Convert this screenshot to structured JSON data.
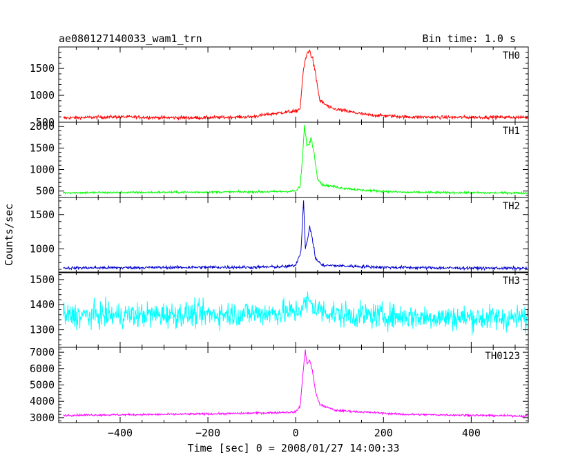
{
  "header": {
    "left_title": "ae080127140033_wam1_trn",
    "right_title": "Bin time: 1.0 s"
  },
  "chart_data": {
    "type": "line",
    "title": "ae080127140033_wam1_trn",
    "subtitle": "Bin time: 1.0 s",
    "xlabel": "Time [sec] 0 = 2008/01/27 14:00:33",
    "ylabel": "Counts/sec",
    "xlim": [
      -540,
      530
    ],
    "x_ticks": [
      -400,
      -200,
      0,
      200,
      400
    ],
    "x_tick_labels": [
      "−400",
      "−200",
      "0",
      "200",
      "400"
    ],
    "grid": false,
    "bin_time_s": 1.0,
    "panels": [
      {
        "name": "TH0",
        "color": "#ff0000",
        "ylim": [
          500,
          1900
        ],
        "y_ticks": [
          500,
          1000,
          1500
        ],
        "series_points": [
          [
            -530,
            580
          ],
          [
            -400,
            600
          ],
          [
            -300,
            585
          ],
          [
            -200,
            585
          ],
          [
            -100,
            600
          ],
          [
            -60,
            650
          ],
          [
            -20,
            690
          ],
          [
            0,
            700
          ],
          [
            10,
            760
          ],
          [
            18,
            1500
          ],
          [
            25,
            1750
          ],
          [
            30,
            1850
          ],
          [
            38,
            1700
          ],
          [
            45,
            1400
          ],
          [
            55,
            900
          ],
          [
            80,
            760
          ],
          [
            120,
            700
          ],
          [
            160,
            640
          ],
          [
            250,
            600
          ],
          [
            350,
            590
          ],
          [
            450,
            595
          ],
          [
            528,
            590
          ]
        ],
        "noise_amplitude": 30
      },
      {
        "name": "TH1",
        "color": "#00ff00",
        "ylim": [
          350,
          2100
        ],
        "y_ticks": [
          500,
          1000,
          1500,
          2000
        ],
        "series_points": [
          [
            -530,
            460
          ],
          [
            -300,
            470
          ],
          [
            -100,
            480
          ],
          [
            -20,
            490
          ],
          [
            0,
            500
          ],
          [
            10,
            600
          ],
          [
            15,
            1200
          ],
          [
            20,
            2000
          ],
          [
            25,
            1600
          ],
          [
            30,
            1550
          ],
          [
            35,
            1750
          ],
          [
            40,
            1500
          ],
          [
            50,
            800
          ],
          [
            60,
            650
          ],
          [
            100,
            580
          ],
          [
            150,
            520
          ],
          [
            250,
            470
          ],
          [
            400,
            460
          ],
          [
            528,
            455
          ]
        ],
        "noise_amplitude": 25
      },
      {
        "name": "TH2",
        "color": "#0000cd",
        "ylim": [
          650,
          1750
        ],
        "y_ticks": [
          1000,
          1500
        ],
        "series_points": [
          [
            -530,
            720
          ],
          [
            -200,
            730
          ],
          [
            -100,
            730
          ],
          [
            -20,
            740
          ],
          [
            0,
            760
          ],
          [
            5,
            850
          ],
          [
            12,
            960
          ],
          [
            18,
            1730
          ],
          [
            22,
            1020
          ],
          [
            28,
            1150
          ],
          [
            32,
            1330
          ],
          [
            38,
            1150
          ],
          [
            45,
            860
          ],
          [
            60,
            760
          ],
          [
            200,
            730
          ],
          [
            350,
            720
          ],
          [
            528,
            715
          ]
        ],
        "noise_amplitude": 22
      },
      {
        "name": "TH3",
        "color": "#00ffff",
        "ylim": [
          1230,
          1530
        ],
        "y_ticks": [
          1300,
          1400,
          1500
        ],
        "series_points": [
          [
            -530,
            1355
          ],
          [
            -300,
            1360
          ],
          [
            -100,
            1365
          ],
          [
            0,
            1370
          ],
          [
            20,
            1400
          ],
          [
            30,
            1410
          ],
          [
            50,
            1380
          ],
          [
            100,
            1360
          ],
          [
            300,
            1350
          ],
          [
            528,
            1345
          ]
        ],
        "noise_amplitude": 50
      },
      {
        "name": "TH0123",
        "color": "#ff00ff",
        "ylim": [
          2700,
          7300
        ],
        "y_ticks": [
          3000,
          4000,
          5000,
          6000,
          7000
        ],
        "series_points": [
          [
            -530,
            3150
          ],
          [
            -300,
            3200
          ],
          [
            -150,
            3250
          ],
          [
            -60,
            3300
          ],
          [
            0,
            3350
          ],
          [
            10,
            3700
          ],
          [
            18,
            6100
          ],
          [
            22,
            7100
          ],
          [
            26,
            6300
          ],
          [
            32,
            6500
          ],
          [
            38,
            5900
          ],
          [
            45,
            4600
          ],
          [
            55,
            3800
          ],
          [
            90,
            3450
          ],
          [
            150,
            3350
          ],
          [
            250,
            3200
          ],
          [
            400,
            3150
          ],
          [
            528,
            3100
          ]
        ],
        "noise_amplitude": 60
      }
    ]
  }
}
